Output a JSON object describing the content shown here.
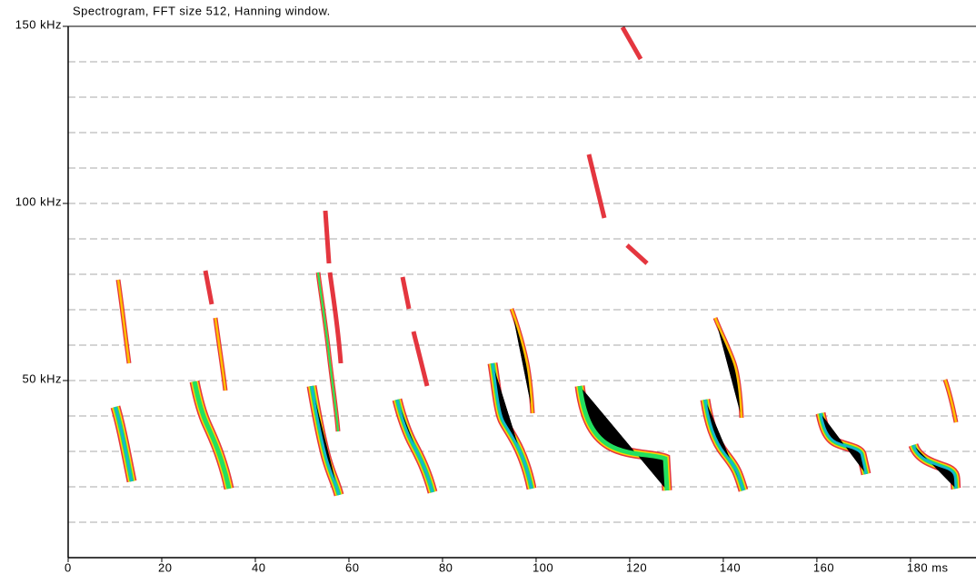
{
  "chart_data": {
    "type": "spectrogram",
    "title": "Spectrogram, FFT size 512, Hanning window.",
    "xlim": [
      0,
      194
    ],
    "xticks": [
      0,
      20,
      40,
      60,
      80,
      100,
      120,
      140,
      160,
      {
        "value": 180,
        "label": "180 ms"
      }
    ],
    "ylim": [
      0,
      150
    ],
    "yticks": [
      {
        "value": 50,
        "label": "50 kHz"
      },
      {
        "value": 100,
        "label": "100 kHz"
      },
      {
        "value": 150,
        "label": "150 kHz"
      }
    ],
    "ygrid": [
      10,
      20,
      30,
      40,
      50,
      60,
      70,
      80,
      90,
      100,
      110,
      120,
      130,
      140
    ]
  }
}
